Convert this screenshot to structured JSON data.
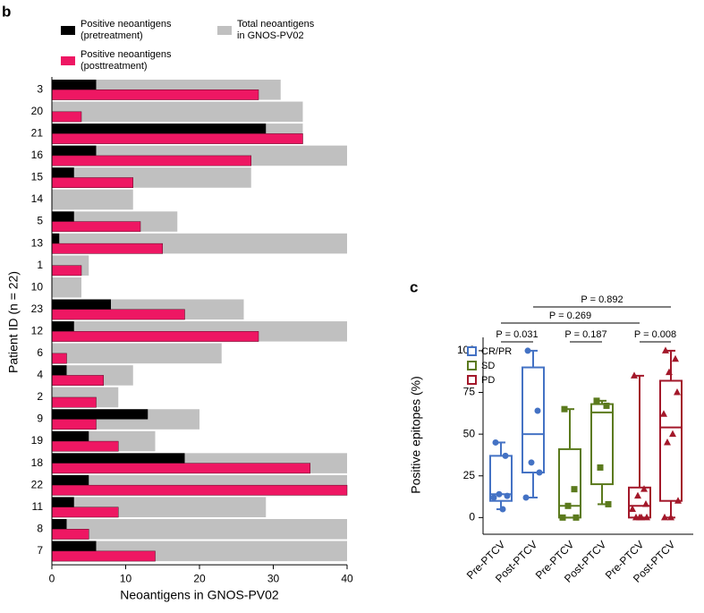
{
  "chart_data": [
    {
      "type": "hbar-overlay",
      "panel": "b",
      "xlabel": "Neoantigens in GNOS-PV02",
      "ylabel": "Patient ID (n = 22)",
      "categories": [
        "3",
        "20",
        "21",
        "16",
        "15",
        "14",
        "5",
        "13",
        "1",
        "10",
        "23",
        "12",
        "6",
        "4",
        "2",
        "9",
        "19",
        "18",
        "22",
        "11",
        "8",
        "7"
      ],
      "series": [
        {
          "name": "Total neoantigens\nin GNOS-PV02",
          "color": "#c0c0c0",
          "role": "total",
          "values": [
            31,
            34,
            34,
            40,
            27,
            11,
            17,
            40,
            5,
            4,
            26,
            40,
            23,
            11,
            9,
            20,
            14,
            40,
            40,
            29,
            40,
            40
          ]
        },
        {
          "name": "Positive neoantigens\n(pretreatment)",
          "color": "#000000",
          "role": "top",
          "values": [
            6,
            0,
            29,
            6,
            3,
            0,
            3,
            1,
            0,
            0,
            8,
            3,
            0,
            2,
            0,
            13,
            5,
            18,
            5,
            3,
            2,
            6
          ]
        },
        {
          "name": "Positive neoantigens\n(posttreatment)",
          "color": "#ee1763",
          "role": "bottom",
          "values": [
            28,
            4,
            34,
            27,
            11,
            0,
            12,
            15,
            4,
            0,
            18,
            28,
            2,
            7,
            6,
            6,
            9,
            35,
            40,
            9,
            5,
            14
          ]
        }
      ],
      "xlim": [
        0,
        40
      ],
      "xticks": [
        0,
        10,
        20,
        30,
        40
      ]
    },
    {
      "type": "box",
      "panel": "c",
      "ylabel": "Positive epitopes (%)",
      "categories": [
        "Pre-PTCV",
        "Post-PTCV"
      ],
      "series": [
        {
          "name": "CR/PR",
          "color": "#4472c4",
          "marker": "circle",
          "boxes": [
            {
              "min": 5,
              "q1": 10,
              "median": 14,
              "q3": 37,
              "max": 45,
              "points": [
                45,
                37,
                14,
                13,
                12,
                5
              ]
            },
            {
              "min": 12,
              "q1": 27,
              "median": 50,
              "q3": 90,
              "max": 100,
              "points": [
                100,
                64,
                33,
                27,
                12
              ]
            }
          ]
        },
        {
          "name": "SD",
          "color": "#5b7a1d",
          "marker": "square",
          "boxes": [
            {
              "min": 0,
              "q1": 0,
              "median": 7,
              "q3": 41,
              "max": 65,
              "points": [
                65,
                17,
                7,
                0,
                0
              ]
            },
            {
              "min": 8,
              "q1": 20,
              "median": 63,
              "q3": 68,
              "max": 70,
              "points": [
                70,
                67,
                30,
                8
              ]
            }
          ]
        },
        {
          "name": "PD",
          "color": "#a3182a",
          "marker": "triangle",
          "boxes": [
            {
              "min": 0,
              "q1": 0,
              "median": 7,
              "q3": 18,
              "max": 85,
              "points": [
                85,
                17,
                13,
                8,
                5,
                0,
                0,
                0,
                0
              ]
            },
            {
              "min": 0,
              "q1": 10,
              "median": 54,
              "q3": 82,
              "max": 100,
              "points": [
                100,
                95,
                87,
                75,
                62,
                50,
                45,
                10,
                0,
                0
              ]
            }
          ]
        }
      ],
      "ylim": [
        -10,
        108
      ],
      "yticks": [
        0,
        25,
        50,
        75,
        100
      ],
      "annotations": [
        "P = 0.031",
        "P = 0.187",
        "P = 0.008",
        "P = 0.269",
        "P = 0.892"
      ]
    }
  ]
}
